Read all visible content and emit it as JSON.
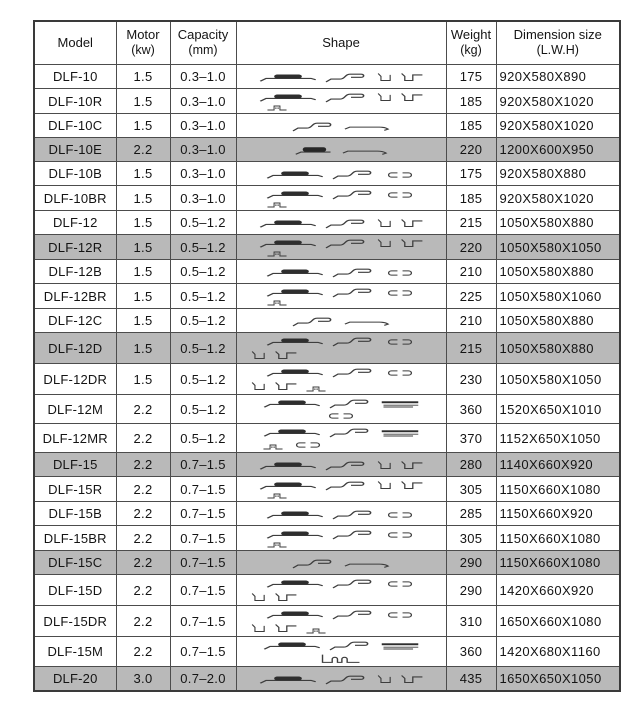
{
  "table": {
    "highlight_color": "#b9b9b9",
    "columns": [
      {
        "id": "model",
        "label": "Model",
        "sub": ""
      },
      {
        "id": "motor",
        "label": "Motor",
        "sub": "(kw)"
      },
      {
        "id": "capacity",
        "label": "Capacity",
        "sub": "(mm)"
      },
      {
        "id": "shape",
        "label": "Shape",
        "sub": ""
      },
      {
        "id": "weight",
        "label": "Weight",
        "sub": "(kg)"
      },
      {
        "id": "dimension",
        "label": "Dimension size",
        "sub": "(L.W.H)"
      }
    ],
    "rows": [
      {
        "model": "DLF-10",
        "motor": "1.5",
        "capacity": "0.3–1.0",
        "weight": "175",
        "dimension": "920X580X890",
        "highlighted": false,
        "shape": {
          "line1": [
            "spring",
            "scurve",
            "lbracket",
            "step"
          ],
          "line2": [],
          "align2": "left",
          "indent2": 0
        }
      },
      {
        "model": "DLF-10R",
        "motor": "1.5",
        "capacity": "0.3–1.0",
        "weight": "185",
        "dimension": "920X580X1020",
        "highlighted": false,
        "shape": {
          "line1": [
            "spring",
            "scurve",
            "lbracket",
            "step"
          ],
          "line2": [
            "futag"
          ],
          "align2": "left",
          "indent2": 26
        }
      },
      {
        "model": "DLF-10C",
        "motor": "1.5",
        "capacity": "0.3–1.0",
        "weight": "185",
        "dimension": "920X580X1020",
        "highlighted": false,
        "shape": {
          "line1": [
            "scurve",
            "arrow"
          ],
          "line2": [],
          "align2": "center",
          "indent2": 0
        }
      },
      {
        "model": "DLF-10E",
        "motor": "2.2",
        "capacity": "0.3–1.0",
        "weight": "220",
        "dimension": "1200X600X950",
        "highlighted": true,
        "shape": {
          "line1": [
            "thickspring",
            "arrow"
          ],
          "line2": [],
          "align2": "center",
          "indent2": 0
        }
      },
      {
        "model": "DLF-10B",
        "motor": "1.5",
        "capacity": "0.3–1.0",
        "weight": "175",
        "dimension": "920X580X880",
        "highlighted": false,
        "shape": {
          "line1": [
            "spring",
            "scurve",
            "oval"
          ],
          "line2": [],
          "align2": "left",
          "indent2": 0
        }
      },
      {
        "model": "DLF-10BR",
        "motor": "1.5",
        "capacity": "0.3–1.0",
        "weight": "185",
        "dimension": "920X580X1020",
        "highlighted": false,
        "shape": {
          "line1": [
            "spring",
            "scurve",
            "oval"
          ],
          "line2": [
            "futag"
          ],
          "align2": "left",
          "indent2": 26
        }
      },
      {
        "model": "DLF-12",
        "motor": "1.5",
        "capacity": "0.5–1.2",
        "weight": "215",
        "dimension": "1050X580X880",
        "highlighted": false,
        "shape": {
          "line1": [
            "spring",
            "scurve",
            "lbracket",
            "step"
          ],
          "line2": [],
          "align2": "left",
          "indent2": 0
        }
      },
      {
        "model": "DLF-12R",
        "motor": "1.5",
        "capacity": "0.5–1.2",
        "weight": "220",
        "dimension": "1050X580X1050",
        "highlighted": true,
        "shape": {
          "line1": [
            "spring",
            "scurve",
            "lbracket",
            "step"
          ],
          "line2": [
            "futag"
          ],
          "align2": "left",
          "indent2": 26
        }
      },
      {
        "model": "DLF-12B",
        "motor": "1.5",
        "capacity": "0.5–1.2",
        "weight": "210",
        "dimension": "1050X580X880",
        "highlighted": false,
        "shape": {
          "line1": [
            "spring",
            "scurve",
            "oval"
          ],
          "line2": [],
          "align2": "left",
          "indent2": 0
        }
      },
      {
        "model": "DLF-12BR",
        "motor": "1.5",
        "capacity": "0.5–1.2",
        "weight": "225",
        "dimension": "1050X580X1060",
        "highlighted": false,
        "shape": {
          "line1": [
            "spring",
            "scurve",
            "oval"
          ],
          "line2": [
            "futag"
          ],
          "align2": "left",
          "indent2": 26
        }
      },
      {
        "model": "DLF-12C",
        "motor": "1.5",
        "capacity": "0.5–1.2",
        "weight": "210",
        "dimension": "1050X580X880",
        "highlighted": false,
        "shape": {
          "line1": [
            "scurve",
            "arrow"
          ],
          "line2": [],
          "align2": "center",
          "indent2": 0
        }
      },
      {
        "model": "DLF-12D",
        "motor": "1.5",
        "capacity": "0.5–1.2",
        "weight": "215",
        "dimension": "1050X580X880",
        "highlighted": true,
        "shape": {
          "line1": [
            "spring",
            "scurve",
            "oval"
          ],
          "line2": [
            "lbracket",
            "step"
          ],
          "align2": "left",
          "indent2": 10
        }
      },
      {
        "model": "DLF-12DR",
        "motor": "1.5",
        "capacity": "0.5–1.2",
        "weight": "230",
        "dimension": "1050X580X1050",
        "highlighted": false,
        "shape": {
          "line1": [
            "spring",
            "scurve",
            "oval"
          ],
          "line2": [
            "lbracket",
            "step",
            "futag"
          ],
          "align2": "left",
          "indent2": 10
        }
      },
      {
        "model": "DLF-12M",
        "motor": "2.2",
        "capacity": "0.5–1.2",
        "weight": "360",
        "dimension": "1520X650X1010",
        "highlighted": false,
        "shape": {
          "line1": [
            "spring",
            "scurve",
            "dbar"
          ],
          "line2": [
            "oval"
          ],
          "align2": "center",
          "indent2": 0
        }
      },
      {
        "model": "DLF-12MR",
        "motor": "2.2",
        "capacity": "0.5–1.2",
        "weight": "370",
        "dimension": "1152X650X1050",
        "highlighted": false,
        "shape": {
          "line1": [
            "spring",
            "scurve",
            "dbar"
          ],
          "line2": [
            "futag",
            "oval"
          ],
          "align2": "left",
          "indent2": 22
        }
      },
      {
        "model": "DLF-15",
        "motor": "2.2",
        "capacity": "0.7–1.5",
        "weight": "280",
        "dimension": "1140X660X920",
        "highlighted": true,
        "shape": {
          "line1": [
            "spring",
            "scurve",
            "lbracket",
            "step"
          ],
          "line2": [],
          "align2": "left",
          "indent2": 0
        }
      },
      {
        "model": "DLF-15R",
        "motor": "2.2",
        "capacity": "0.7–1.5",
        "weight": "305",
        "dimension": "1150X660X1080",
        "highlighted": false,
        "shape": {
          "line1": [
            "spring",
            "scurve",
            "lbracket",
            "step"
          ],
          "line2": [
            "futag"
          ],
          "align2": "left",
          "indent2": 26
        }
      },
      {
        "model": "DLF-15B",
        "motor": "2.2",
        "capacity": "0.7–1.5",
        "weight": "285",
        "dimension": "1150X660X920",
        "highlighted": false,
        "shape": {
          "line1": [
            "spring",
            "scurve",
            "oval"
          ],
          "line2": [],
          "align2": "left",
          "indent2": 0
        }
      },
      {
        "model": "DLF-15BR",
        "motor": "2.2",
        "capacity": "0.7–1.5",
        "weight": "305",
        "dimension": "1150X660X1080",
        "highlighted": false,
        "shape": {
          "line1": [
            "spring",
            "scurve",
            "oval"
          ],
          "line2": [
            "futag"
          ],
          "align2": "left",
          "indent2": 26
        }
      },
      {
        "model": "DLF-15C",
        "motor": "2.2",
        "capacity": "0.7–1.5",
        "weight": "290",
        "dimension": "1150X660X1080",
        "highlighted": true,
        "shape": {
          "line1": [
            "scurve",
            "arrow"
          ],
          "line2": [],
          "align2": "center",
          "indent2": 0
        }
      },
      {
        "model": "DLF-15D",
        "motor": "2.2",
        "capacity": "0.7–1.5",
        "weight": "290",
        "dimension": "1420X660X920",
        "highlighted": false,
        "shape": {
          "line1": [
            "spring",
            "scurve",
            "oval"
          ],
          "line2": [
            "lbracket",
            "step"
          ],
          "align2": "left",
          "indent2": 10
        }
      },
      {
        "model": "DLF-15DR",
        "motor": "2.2",
        "capacity": "0.7–1.5",
        "weight": "310",
        "dimension": "1650X660X1080",
        "highlighted": false,
        "shape": {
          "line1": [
            "spring",
            "scurve",
            "oval"
          ],
          "line2": [
            "lbracket",
            "step",
            "futag"
          ],
          "align2": "left",
          "indent2": 10
        }
      },
      {
        "model": "DLF-15M",
        "motor": "2.2",
        "capacity": "0.7–1.5",
        "weight": "360",
        "dimension": "1420X680X1160",
        "highlighted": false,
        "shape": {
          "line1": [
            "spring",
            "scurve",
            "dbar"
          ],
          "line2": [
            "loops"
          ],
          "align2": "center",
          "indent2": 0
        }
      },
      {
        "model": "DLF-20",
        "motor": "3.0",
        "capacity": "0.7–2.0",
        "weight": "435",
        "dimension": "1650X650X1050",
        "highlighted": true,
        "shape": {
          "line1": [
            "spring",
            "scurve",
            "lbracket",
            "step"
          ],
          "line2": [],
          "align2": "left",
          "indent2": 0
        }
      }
    ]
  }
}
